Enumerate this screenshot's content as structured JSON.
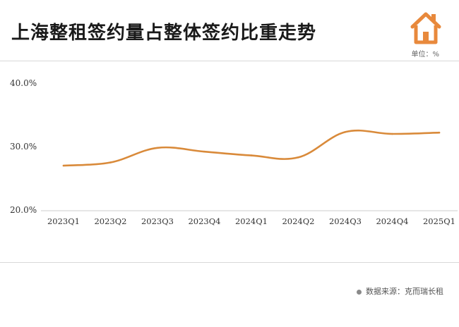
{
  "title": "上海整租签约量占整体签约比重走势",
  "unit_label": "单位：%",
  "source_label": "数据来源：克而瑞长租",
  "line_color": "#d98a3a",
  "logo_color": "#e8893c",
  "chart_data": {
    "type": "line",
    "title": "上海整租签约量占整体签约比重走势",
    "xlabel": "",
    "ylabel": "",
    "unit": "%",
    "ylim": [
      20,
      40
    ],
    "yticks": [
      20,
      30,
      40
    ],
    "ytick_labels": [
      "20.0%",
      "30.0%",
      "40.0%"
    ],
    "grid": false,
    "categories": [
      "2023Q1",
      "2023Q2",
      "2023Q3",
      "2023Q4",
      "2024Q1",
      "2024Q2",
      "2024Q3",
      "2024Q4",
      "2025Q1"
    ],
    "series": [
      {
        "values": [
          27.0,
          27.5,
          29.8,
          29.2,
          28.6,
          28.3,
          32.3,
          32.0,
          32.2
        ]
      }
    ]
  }
}
